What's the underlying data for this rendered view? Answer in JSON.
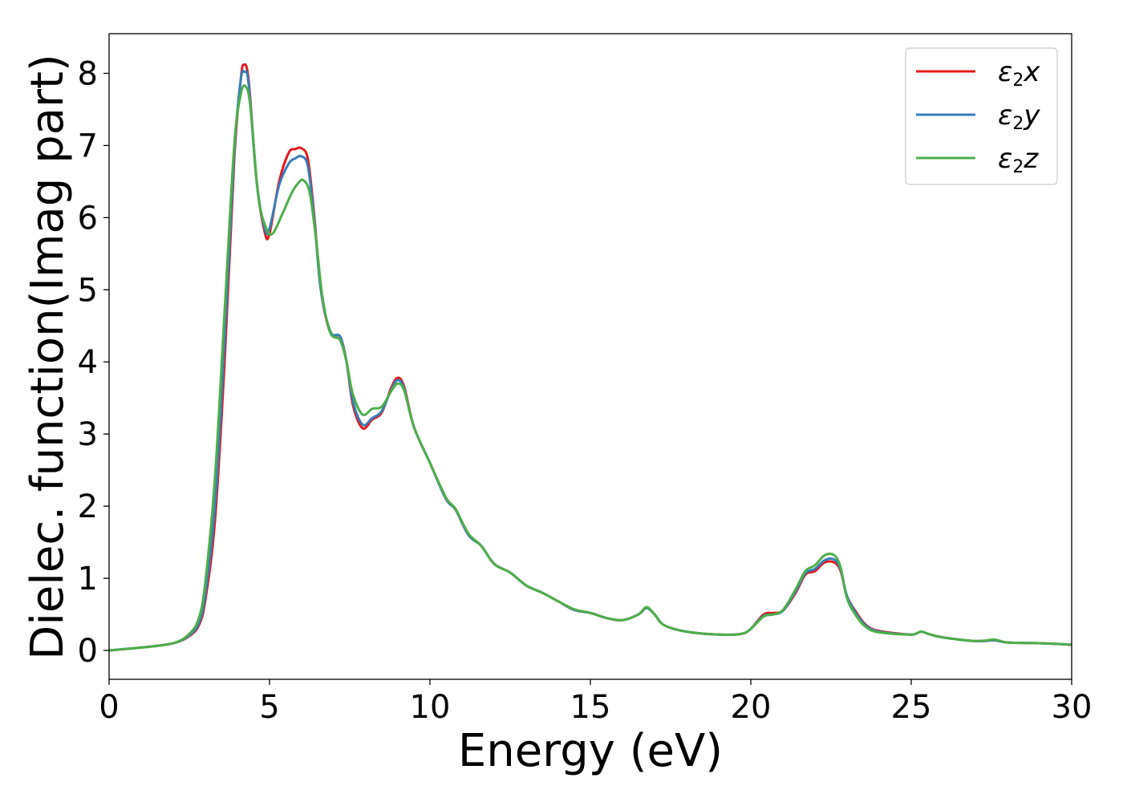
{
  "chart_data": {
    "type": "line",
    "xlabel": "Energy (eV)",
    "ylabel": "Dielec. function(Imag part)",
    "xlim": [
      0,
      30
    ],
    "ylim": [
      -0.4,
      8.55
    ],
    "x_ticks": [
      0,
      5,
      10,
      15,
      20,
      25,
      30
    ],
    "y_ticks": [
      0,
      1,
      2,
      3,
      4,
      5,
      6,
      7,
      8
    ],
    "grid": false,
    "legend_position": "top-right",
    "series": [
      {
        "name": "ε2x",
        "legend_base": "ε",
        "legend_sub": "2",
        "legend_var": "x",
        "color": "#e41a1c",
        "points": [
          [
            0,
            0.0
          ],
          [
            1,
            0.04
          ],
          [
            2,
            0.1
          ],
          [
            2.5,
            0.2
          ],
          [
            2.8,
            0.35
          ],
          [
            3.0,
            0.7
          ],
          [
            3.3,
            1.8
          ],
          [
            3.6,
            4.0
          ],
          [
            3.9,
            6.8
          ],
          [
            4.1,
            7.9
          ],
          [
            4.2,
            8.12
          ],
          [
            4.35,
            7.9
          ],
          [
            4.6,
            6.5
          ],
          [
            4.85,
            5.8
          ],
          [
            5.0,
            5.78
          ],
          [
            5.3,
            6.5
          ],
          [
            5.6,
            6.9
          ],
          [
            5.8,
            6.95
          ],
          [
            6.0,
            6.96
          ],
          [
            6.2,
            6.8
          ],
          [
            6.4,
            6.0
          ],
          [
            6.6,
            5.0
          ],
          [
            6.9,
            4.4
          ],
          [
            7.2,
            4.35
          ],
          [
            7.4,
            4.0
          ],
          [
            7.6,
            3.4
          ],
          [
            7.9,
            3.08
          ],
          [
            8.2,
            3.2
          ],
          [
            8.5,
            3.3
          ],
          [
            8.8,
            3.65
          ],
          [
            9.0,
            3.78
          ],
          [
            9.2,
            3.65
          ],
          [
            9.5,
            3.1
          ],
          [
            10.0,
            2.6
          ],
          [
            10.5,
            2.1
          ],
          [
            10.8,
            1.95
          ],
          [
            11.2,
            1.6
          ],
          [
            11.6,
            1.45
          ],
          [
            12.0,
            1.2
          ],
          [
            12.5,
            1.08
          ],
          [
            13.0,
            0.9
          ],
          [
            13.5,
            0.8
          ],
          [
            14.0,
            0.68
          ],
          [
            14.5,
            0.56
          ],
          [
            15.0,
            0.52
          ],
          [
            15.5,
            0.45
          ],
          [
            16.0,
            0.42
          ],
          [
            16.5,
            0.5
          ],
          [
            16.75,
            0.59
          ],
          [
            17.0,
            0.5
          ],
          [
            17.3,
            0.35
          ],
          [
            18.0,
            0.26
          ],
          [
            19.0,
            0.22
          ],
          [
            19.7,
            0.23
          ],
          [
            20.0,
            0.3
          ],
          [
            20.4,
            0.5
          ],
          [
            20.7,
            0.52
          ],
          [
            21.0,
            0.55
          ],
          [
            21.4,
            0.8
          ],
          [
            21.7,
            1.05
          ],
          [
            22.0,
            1.1
          ],
          [
            22.3,
            1.22
          ],
          [
            22.6,
            1.22
          ],
          [
            22.8,
            1.1
          ],
          [
            23.0,
            0.75
          ],
          [
            23.3,
            0.52
          ],
          [
            23.6,
            0.35
          ],
          [
            24.0,
            0.27
          ],
          [
            25.0,
            0.22
          ],
          [
            25.3,
            0.26
          ],
          [
            25.6,
            0.22
          ],
          [
            26.0,
            0.18
          ],
          [
            27.0,
            0.13
          ],
          [
            27.6,
            0.14
          ],
          [
            28.0,
            0.11
          ],
          [
            29.0,
            0.1
          ],
          [
            30.0,
            0.08
          ]
        ]
      },
      {
        "name": "ε2y",
        "legend_base": "ε",
        "legend_sub": "2",
        "legend_var": "y",
        "color": "#377eb8",
        "points": [
          [
            0,
            0.0
          ],
          [
            1,
            0.04
          ],
          [
            2,
            0.1
          ],
          [
            2.5,
            0.21
          ],
          [
            2.8,
            0.38
          ],
          [
            3.0,
            0.78
          ],
          [
            3.3,
            2.0
          ],
          [
            3.6,
            4.3
          ],
          [
            3.9,
            6.9
          ],
          [
            4.1,
            7.9
          ],
          [
            4.22,
            8.02
          ],
          [
            4.35,
            7.85
          ],
          [
            4.6,
            6.5
          ],
          [
            4.85,
            5.85
          ],
          [
            5.0,
            5.85
          ],
          [
            5.3,
            6.45
          ],
          [
            5.6,
            6.75
          ],
          [
            5.8,
            6.82
          ],
          [
            6.0,
            6.85
          ],
          [
            6.2,
            6.7
          ],
          [
            6.4,
            5.95
          ],
          [
            6.6,
            5.0
          ],
          [
            6.9,
            4.42
          ],
          [
            7.2,
            4.35
          ],
          [
            7.4,
            4.0
          ],
          [
            7.6,
            3.45
          ],
          [
            7.9,
            3.13
          ],
          [
            8.2,
            3.22
          ],
          [
            8.5,
            3.32
          ],
          [
            8.8,
            3.62
          ],
          [
            9.0,
            3.75
          ],
          [
            9.2,
            3.62
          ],
          [
            9.5,
            3.1
          ],
          [
            10.0,
            2.6
          ],
          [
            10.5,
            2.1
          ],
          [
            10.8,
            1.95
          ],
          [
            11.2,
            1.6
          ],
          [
            11.6,
            1.45
          ],
          [
            12.0,
            1.2
          ],
          [
            12.5,
            1.08
          ],
          [
            13.0,
            0.9
          ],
          [
            13.5,
            0.8
          ],
          [
            14.0,
            0.68
          ],
          [
            14.5,
            0.56
          ],
          [
            15.0,
            0.52
          ],
          [
            15.5,
            0.45
          ],
          [
            16.0,
            0.42
          ],
          [
            16.5,
            0.5
          ],
          [
            16.75,
            0.59
          ],
          [
            17.0,
            0.5
          ],
          [
            17.3,
            0.35
          ],
          [
            18.0,
            0.26
          ],
          [
            19.0,
            0.22
          ],
          [
            19.7,
            0.23
          ],
          [
            20.0,
            0.3
          ],
          [
            20.4,
            0.48
          ],
          [
            20.7,
            0.5
          ],
          [
            21.0,
            0.55
          ],
          [
            21.4,
            0.82
          ],
          [
            21.7,
            1.07
          ],
          [
            22.0,
            1.13
          ],
          [
            22.3,
            1.25
          ],
          [
            22.6,
            1.26
          ],
          [
            22.8,
            1.12
          ],
          [
            23.0,
            0.75
          ],
          [
            23.3,
            0.5
          ],
          [
            23.6,
            0.34
          ],
          [
            24.0,
            0.26
          ],
          [
            25.0,
            0.22
          ],
          [
            25.3,
            0.26
          ],
          [
            25.6,
            0.22
          ],
          [
            26.0,
            0.18
          ],
          [
            27.0,
            0.13
          ],
          [
            27.6,
            0.14
          ],
          [
            28.0,
            0.11
          ],
          [
            29.0,
            0.1
          ],
          [
            30.0,
            0.08
          ]
        ]
      },
      {
        "name": "ε2z",
        "legend_base": "ε",
        "legend_sub": "2",
        "legend_var": "z",
        "color": "#4daf4a",
        "points": [
          [
            0,
            0.0
          ],
          [
            1,
            0.04
          ],
          [
            2,
            0.1
          ],
          [
            2.5,
            0.23
          ],
          [
            2.8,
            0.45
          ],
          [
            3.0,
            0.95
          ],
          [
            3.3,
            2.4
          ],
          [
            3.6,
            4.7
          ],
          [
            3.9,
            7.0
          ],
          [
            4.1,
            7.7
          ],
          [
            4.25,
            7.82
          ],
          [
            4.4,
            7.55
          ],
          [
            4.65,
            6.3
          ],
          [
            4.9,
            5.85
          ],
          [
            5.1,
            5.78
          ],
          [
            5.4,
            6.05
          ],
          [
            5.7,
            6.35
          ],
          [
            5.9,
            6.48
          ],
          [
            6.05,
            6.52
          ],
          [
            6.25,
            6.35
          ],
          [
            6.45,
            5.7
          ],
          [
            6.65,
            4.9
          ],
          [
            6.9,
            4.4
          ],
          [
            7.2,
            4.3
          ],
          [
            7.4,
            4.0
          ],
          [
            7.6,
            3.55
          ],
          [
            7.9,
            3.27
          ],
          [
            8.2,
            3.35
          ],
          [
            8.5,
            3.38
          ],
          [
            8.8,
            3.6
          ],
          [
            9.0,
            3.7
          ],
          [
            9.2,
            3.6
          ],
          [
            9.5,
            3.1
          ],
          [
            10.0,
            2.6
          ],
          [
            10.5,
            2.12
          ],
          [
            10.8,
            1.96
          ],
          [
            11.2,
            1.62
          ],
          [
            11.6,
            1.45
          ],
          [
            12.0,
            1.2
          ],
          [
            12.5,
            1.08
          ],
          [
            13.0,
            0.9
          ],
          [
            13.5,
            0.8
          ],
          [
            14.0,
            0.68
          ],
          [
            14.5,
            0.57
          ],
          [
            15.0,
            0.52
          ],
          [
            15.5,
            0.45
          ],
          [
            16.0,
            0.42
          ],
          [
            16.5,
            0.5
          ],
          [
            16.75,
            0.6
          ],
          [
            17.0,
            0.5
          ],
          [
            17.3,
            0.35
          ],
          [
            18.0,
            0.26
          ],
          [
            19.0,
            0.22
          ],
          [
            19.7,
            0.23
          ],
          [
            20.0,
            0.3
          ],
          [
            20.4,
            0.47
          ],
          [
            20.7,
            0.5
          ],
          [
            21.0,
            0.56
          ],
          [
            21.4,
            0.85
          ],
          [
            21.7,
            1.1
          ],
          [
            22.0,
            1.18
          ],
          [
            22.3,
            1.32
          ],
          [
            22.6,
            1.32
          ],
          [
            22.8,
            1.15
          ],
          [
            23.0,
            0.72
          ],
          [
            23.3,
            0.47
          ],
          [
            23.6,
            0.32
          ],
          [
            24.0,
            0.25
          ],
          [
            25.0,
            0.22
          ],
          [
            25.3,
            0.26
          ],
          [
            25.6,
            0.22
          ],
          [
            26.0,
            0.18
          ],
          [
            27.0,
            0.13
          ],
          [
            27.6,
            0.15
          ],
          [
            28.0,
            0.11
          ],
          [
            29.0,
            0.1
          ],
          [
            30.0,
            0.08
          ]
        ]
      }
    ]
  }
}
